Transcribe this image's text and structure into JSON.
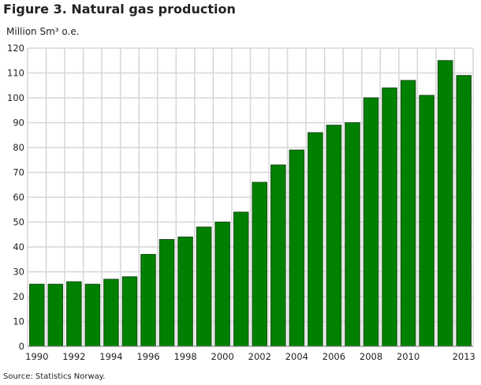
{
  "chart_data": {
    "type": "bar",
    "title": "Figure 3. Natural gas production",
    "ylabel": "Million Sm³ o.e.",
    "xlabel": "",
    "categories": [
      "1990",
      "1991",
      "1992",
      "1993",
      "1994",
      "1995",
      "1996",
      "1997",
      "1998",
      "1999",
      "2000",
      "2001",
      "2002",
      "2003",
      "2004",
      "2005",
      "2006",
      "2007",
      "2008",
      "2009",
      "2010",
      "2011",
      "2012",
      "2013"
    ],
    "x_tick_labels": [
      "1990",
      "",
      "1992",
      "",
      "1994",
      "",
      "1996",
      "",
      "1998",
      "",
      "2000",
      "",
      "2002",
      "",
      "2004",
      "",
      "2006",
      "",
      "2008",
      "",
      "2010",
      "",
      "",
      "2013"
    ],
    "values": [
      25,
      25,
      26,
      25,
      27,
      28,
      37,
      43,
      44,
      48,
      50,
      54,
      66,
      73,
      79,
      86,
      89,
      90,
      100,
      104,
      107,
      101,
      115,
      109
    ],
    "ylim": [
      0,
      120
    ],
    "yticks": [
      0,
      10,
      20,
      30,
      40,
      50,
      60,
      70,
      80,
      90,
      100,
      110,
      120
    ],
    "grid": true,
    "bar_color": "#008000",
    "bar_border": "#1a4d1a",
    "source": "Source: Statistics Norway."
  }
}
